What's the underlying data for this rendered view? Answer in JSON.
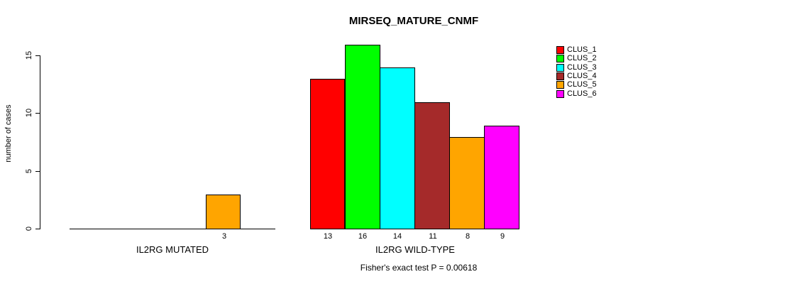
{
  "chart_data": {
    "type": "bar",
    "title": "MIRSEQ_MATURE_CNMF",
    "ylabel": "number of cases",
    "xlabel": "",
    "ylim": [
      0,
      15
    ],
    "y_ticks": [
      0,
      5,
      10,
      15
    ],
    "grid": false,
    "legend_position": "right",
    "annotation": "Fisher's exact test P = 0.00618",
    "series_labels": [
      "CLUS_1",
      "CLUS_2",
      "CLUS_3",
      "CLUS_4",
      "CLUS_5",
      "CLUS_6"
    ],
    "series_colors": [
      "#ff0000",
      "#00ff00",
      "#00ffff",
      "#a52a2a",
      "#ffa500",
      "#ff00ff"
    ],
    "groups": [
      {
        "label": "IL2RG MUTATED",
        "values": [
          0,
          0,
          0,
          0,
          3,
          0
        ]
      },
      {
        "label": "IL2RG WILD-TYPE",
        "values": [
          13,
          16,
          14,
          11,
          8,
          9
        ]
      }
    ]
  }
}
